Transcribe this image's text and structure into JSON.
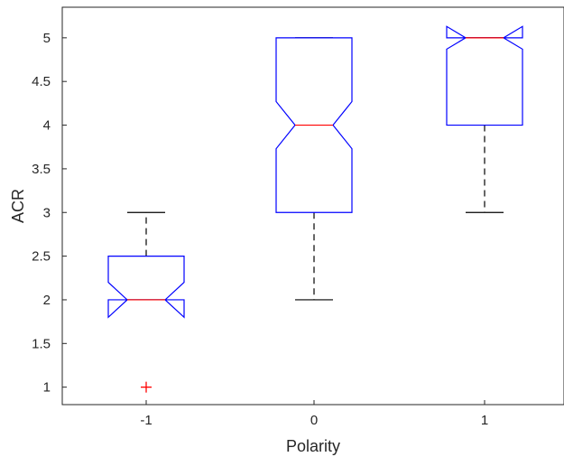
{
  "chart_data": {
    "type": "boxplot",
    "notched": true,
    "title": "",
    "xlabel": "Polarity",
    "ylabel": "ACR",
    "ylim": [
      0.8,
      5.35
    ],
    "yticks": [
      1,
      1.5,
      2,
      2.5,
      3,
      3.5,
      4,
      4.5,
      5
    ],
    "ytick_labels": [
      "1",
      "1.5",
      "2",
      "2.5",
      "3",
      "3.5",
      "4",
      "4.5",
      "5"
    ],
    "categories": [
      "-1",
      "0",
      "1"
    ],
    "boxes": [
      {
        "category": "-1",
        "q1": 2,
        "median": 2,
        "q3": 2.5,
        "whisker_low": 2,
        "whisker_high": 3,
        "notch_low": 1.8,
        "notch_high": 2.2,
        "outliers": [
          1
        ]
      },
      {
        "category": "0",
        "q1": 3,
        "median": 4,
        "q3": 5,
        "whisker_low": 2,
        "whisker_high": 5,
        "notch_low": 3.73,
        "notch_high": 4.27,
        "outliers": []
      },
      {
        "category": "1",
        "q1": 4,
        "median": 5,
        "q3": 5,
        "whisker_low": 3,
        "whisker_high": 5,
        "notch_low": 4.87,
        "notch_high": 5.13,
        "outliers": []
      }
    ],
    "colors": {
      "box": "#0000ff",
      "median": "#ff0000",
      "whisker": "#000000",
      "outlier": "#ff0000",
      "axis": "#262626"
    },
    "grid": false,
    "legend": "none"
  }
}
